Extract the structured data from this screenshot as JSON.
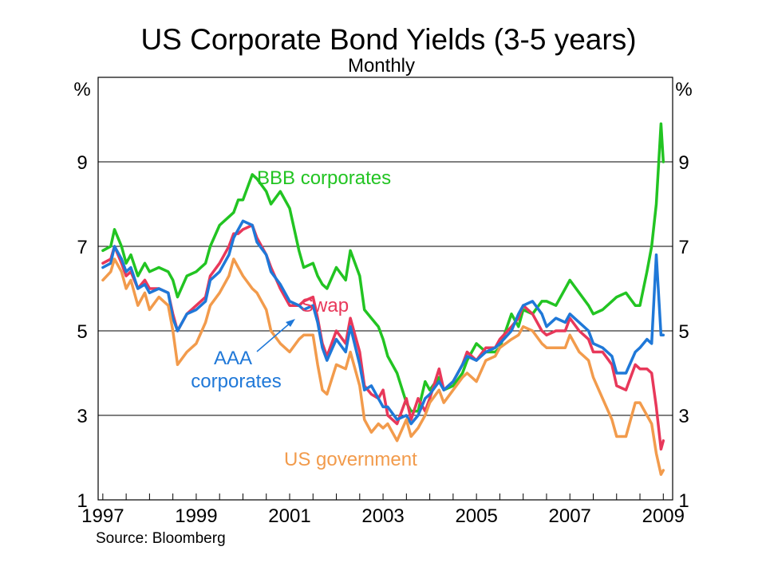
{
  "chart_data": {
    "type": "line",
    "title": "US Corporate Bond Yields (3-5 years)",
    "subtitle": "Monthly",
    "source": "Source: Bloomberg",
    "y_unit": "%",
    "ylim": [
      1,
      11
    ],
    "y_ticks": [
      1,
      3,
      5,
      7,
      9
    ],
    "xlim": [
      1996.9,
      2009.2
    ],
    "x_ticks": [
      1997,
      1999,
      2001,
      2003,
      2005,
      2007,
      2009
    ],
    "grid": true,
    "colors": {
      "bbb": "#22c422",
      "swap": "#e8385a",
      "aaa": "#1f78d8",
      "gov": "#f29b4c",
      "arrow": "#1f78d8"
    },
    "series": [
      {
        "name": "BBB corporates",
        "color": "#22c422",
        "x": [
          1997.0,
          1997.17,
          1997.25,
          1997.4,
          1997.5,
          1997.6,
          1997.75,
          1997.9,
          1998.0,
          1998.2,
          1998.4,
          1998.5,
          1998.6,
          1998.8,
          1999.0,
          1999.2,
          1999.3,
          1999.5,
          1999.7,
          1999.8,
          1999.9,
          2000.0,
          2000.2,
          2000.3,
          2000.5,
          2000.6,
          2000.8,
          2001.0,
          2001.2,
          2001.3,
          2001.5,
          2001.6,
          2001.7,
          2001.8,
          2002.0,
          2002.2,
          2002.3,
          2002.5,
          2002.6,
          2002.75,
          2002.9,
          2003.0,
          2003.1,
          2003.3,
          2003.5,
          2003.6,
          2003.75,
          2003.9,
          2004.0,
          2004.2,
          2004.3,
          2004.5,
          2004.7,
          2004.8,
          2005.0,
          2005.2,
          2005.4,
          2005.5,
          2005.75,
          2005.9,
          2006.0,
          2006.2,
          2006.4,
          2006.5,
          2006.7,
          2006.9,
          2007.0,
          2007.2,
          2007.4,
          2007.5,
          2007.7,
          2007.9,
          2008.0,
          2008.2,
          2008.4,
          2008.5,
          2008.65,
          2008.75,
          2008.85,
          2008.95,
          2009.0
        ],
        "y": [
          6.9,
          7.0,
          7.4,
          7.0,
          6.6,
          6.8,
          6.3,
          6.6,
          6.4,
          6.5,
          6.4,
          6.2,
          5.8,
          6.3,
          6.4,
          6.6,
          7.0,
          7.5,
          7.7,
          7.8,
          8.1,
          8.1,
          8.7,
          8.6,
          8.3,
          8.0,
          8.3,
          7.9,
          6.9,
          6.5,
          6.6,
          6.3,
          6.1,
          6.0,
          6.5,
          6.2,
          6.9,
          6.3,
          5.5,
          5.3,
          5.1,
          4.8,
          4.4,
          4.0,
          3.3,
          3.1,
          3.1,
          3.8,
          3.6,
          3.9,
          3.6,
          3.7,
          4.0,
          4.3,
          4.7,
          4.5,
          4.5,
          4.6,
          5.4,
          5.1,
          5.5,
          5.4,
          5.7,
          5.7,
          5.6,
          6.0,
          6.2,
          5.9,
          5.6,
          5.4,
          5.5,
          5.7,
          5.8,
          5.9,
          5.6,
          5.6,
          6.4,
          7.0,
          8.0,
          9.9,
          9.0
        ]
      },
      {
        "name": "Swap",
        "color": "#e8385a",
        "x": [
          1997.0,
          1997.17,
          1997.25,
          1997.4,
          1997.5,
          1997.6,
          1997.75,
          1997.9,
          1998.0,
          1998.2,
          1998.4,
          1998.5,
          1998.6,
          1998.8,
          1999.0,
          1999.2,
          1999.3,
          1999.5,
          1999.7,
          1999.8,
          1999.9,
          2000.0,
          2000.2,
          2000.3,
          2000.5,
          2000.6,
          2000.8,
          2001.0,
          2001.2,
          2001.3,
          2001.5,
          2001.6,
          2001.7,
          2001.8,
          2002.0,
          2002.2,
          2002.3,
          2002.5,
          2002.6,
          2002.75,
          2002.9,
          2003.0,
          2003.1,
          2003.3,
          2003.5,
          2003.6,
          2003.75,
          2003.9,
          2004.0,
          2004.2,
          2004.3,
          2004.5,
          2004.7,
          2004.8,
          2005.0,
          2005.2,
          2005.4,
          2005.5,
          2005.75,
          2005.9,
          2006.0,
          2006.2,
          2006.4,
          2006.5,
          2006.7,
          2006.9,
          2007.0,
          2007.2,
          2007.4,
          2007.5,
          2007.7,
          2007.9,
          2008.0,
          2008.2,
          2008.4,
          2008.5,
          2008.65,
          2008.75,
          2008.85,
          2008.95,
          2009.0
        ],
        "y": [
          6.6,
          6.7,
          7.0,
          6.6,
          6.3,
          6.4,
          6.0,
          6.2,
          6.0,
          6.0,
          5.9,
          5.4,
          5.0,
          5.4,
          5.6,
          5.8,
          6.3,
          6.6,
          7.0,
          7.3,
          7.3,
          7.4,
          7.5,
          7.2,
          6.8,
          6.5,
          6.0,
          5.6,
          5.6,
          5.7,
          5.8,
          5.3,
          4.7,
          4.4,
          5.0,
          4.7,
          5.3,
          4.5,
          3.7,
          3.5,
          3.4,
          3.6,
          3.0,
          2.8,
          3.4,
          2.9,
          3.4,
          3.1,
          3.4,
          4.1,
          3.6,
          3.8,
          4.2,
          4.5,
          4.3,
          4.6,
          4.6,
          4.8,
          5.1,
          5.3,
          5.6,
          5.4,
          5.0,
          4.9,
          5.0,
          5.0,
          5.3,
          5.0,
          4.8,
          4.5,
          4.5,
          4.2,
          3.7,
          3.6,
          4.2,
          4.1,
          4.1,
          4.0,
          3.2,
          2.2,
          2.4
        ]
      },
      {
        "name": "AAA corporates",
        "color": "#1f78d8",
        "x": [
          1997.0,
          1997.17,
          1997.25,
          1997.4,
          1997.5,
          1997.6,
          1997.75,
          1997.9,
          1998.0,
          1998.2,
          1998.4,
          1998.5,
          1998.6,
          1998.8,
          1999.0,
          1999.2,
          1999.3,
          1999.5,
          1999.7,
          1999.8,
          1999.9,
          2000.0,
          2000.2,
          2000.3,
          2000.5,
          2000.6,
          2000.8,
          2001.0,
          2001.2,
          2001.3,
          2001.5,
          2001.6,
          2001.7,
          2001.8,
          2002.0,
          2002.2,
          2002.3,
          2002.5,
          2002.6,
          2002.75,
          2002.9,
          2003.0,
          2003.1,
          2003.3,
          2003.5,
          2003.6,
          2003.75,
          2003.9,
          2004.0,
          2004.2,
          2004.3,
          2004.5,
          2004.7,
          2004.8,
          2005.0,
          2005.2,
          2005.4,
          2005.5,
          2005.75,
          2005.9,
          2006.0,
          2006.2,
          2006.4,
          2006.5,
          2006.7,
          2006.9,
          2007.0,
          2007.2,
          2007.4,
          2007.5,
          2007.7,
          2007.9,
          2008.0,
          2008.2,
          2008.4,
          2008.5,
          2008.65,
          2008.75,
          2008.85,
          2008.95,
          2009.0
        ],
        "y": [
          6.5,
          6.6,
          7.0,
          6.7,
          6.4,
          6.5,
          6.0,
          6.1,
          5.9,
          6.0,
          5.9,
          5.3,
          5.0,
          5.4,
          5.5,
          5.7,
          6.2,
          6.4,
          6.8,
          7.2,
          7.4,
          7.6,
          7.5,
          7.1,
          6.8,
          6.4,
          6.1,
          5.7,
          5.6,
          5.5,
          5.6,
          5.2,
          4.6,
          4.3,
          4.8,
          4.5,
          5.1,
          4.2,
          3.6,
          3.7,
          3.4,
          3.2,
          3.2,
          2.9,
          3.0,
          2.8,
          3.0,
          3.4,
          3.5,
          3.8,
          3.6,
          3.8,
          4.2,
          4.4,
          4.3,
          4.5,
          4.6,
          4.7,
          5.0,
          5.4,
          5.6,
          5.7,
          5.4,
          5.1,
          5.3,
          5.2,
          5.4,
          5.2,
          5.0,
          4.7,
          4.6,
          4.4,
          4.0,
          4.0,
          4.5,
          4.6,
          4.8,
          4.7,
          6.8,
          4.9,
          4.9
        ]
      },
      {
        "name": "US government",
        "color": "#f29b4c",
        "x": [
          1997.0,
          1997.17,
          1997.25,
          1997.4,
          1997.5,
          1997.6,
          1997.75,
          1997.9,
          1998.0,
          1998.2,
          1998.4,
          1998.5,
          1998.6,
          1998.8,
          1999.0,
          1999.2,
          1999.3,
          1999.5,
          1999.7,
          1999.8,
          1999.9,
          2000.0,
          2000.2,
          2000.3,
          2000.5,
          2000.6,
          2000.8,
          2001.0,
          2001.2,
          2001.3,
          2001.5,
          2001.6,
          2001.7,
          2001.8,
          2002.0,
          2002.2,
          2002.3,
          2002.5,
          2002.6,
          2002.75,
          2002.9,
          2003.0,
          2003.1,
          2003.3,
          2003.5,
          2003.6,
          2003.75,
          2003.9,
          2004.0,
          2004.2,
          2004.3,
          2004.5,
          2004.7,
          2004.8,
          2005.0,
          2005.2,
          2005.4,
          2005.5,
          2005.75,
          2005.9,
          2006.0,
          2006.2,
          2006.4,
          2006.5,
          2006.7,
          2006.9,
          2007.0,
          2007.2,
          2007.4,
          2007.5,
          2007.7,
          2007.9,
          2008.0,
          2008.2,
          2008.4,
          2008.5,
          2008.65,
          2008.75,
          2008.85,
          2008.95,
          2009.0
        ],
        "y": [
          6.2,
          6.4,
          6.7,
          6.4,
          6.0,
          6.2,
          5.6,
          5.9,
          5.5,
          5.8,
          5.6,
          5.0,
          4.2,
          4.5,
          4.7,
          5.2,
          5.6,
          5.9,
          6.3,
          6.7,
          6.5,
          6.3,
          6.0,
          5.9,
          5.5,
          5.0,
          4.7,
          4.5,
          4.8,
          4.9,
          4.9,
          4.2,
          3.6,
          3.5,
          4.2,
          4.1,
          4.5,
          3.7,
          2.9,
          2.6,
          2.8,
          2.7,
          2.8,
          2.4,
          2.9,
          2.5,
          2.7,
          3.0,
          3.3,
          3.6,
          3.3,
          3.6,
          3.9,
          4.0,
          3.8,
          4.3,
          4.4,
          4.6,
          4.8,
          4.9,
          5.1,
          5.0,
          4.7,
          4.6,
          4.6,
          4.6,
          4.9,
          4.5,
          4.3,
          3.9,
          3.4,
          2.9,
          2.5,
          2.5,
          3.3,
          3.3,
          3.0,
          2.8,
          2.1,
          1.6,
          1.7
        ]
      }
    ],
    "annotations": [
      {
        "key": "bbb",
        "lines": [
          "BBB corporates"
        ],
        "color": "#22c422"
      },
      {
        "key": "swap",
        "lines": [
          "Swap"
        ],
        "color": "#e8385a"
      },
      {
        "key": "aaa",
        "lines": [
          "AAA",
          "corporates"
        ],
        "color": "#1f78d8"
      },
      {
        "key": "gov",
        "lines": [
          "US government"
        ],
        "color": "#f29b4c"
      }
    ]
  }
}
